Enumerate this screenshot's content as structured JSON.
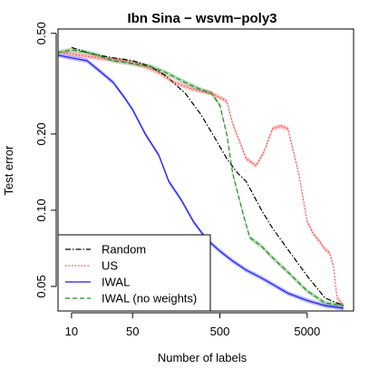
{
  "chart_data": {
    "type": "line",
    "title": "Ibn Sina − wsvm−poly3",
    "xlabel": "Number of labels",
    "ylabel": "Test error",
    "x_scale": "log",
    "y_scale": "log",
    "xlim": [
      7,
      17000
    ],
    "ylim": [
      0.04,
      0.52
    ],
    "x_ticks": [
      10,
      50,
      500,
      5000
    ],
    "x_tick_labels": [
      "10",
      "50",
      "500",
      "5000"
    ],
    "y_ticks": [
      0.05,
      0.1,
      0.2,
      0.5
    ],
    "y_tick_labels": [
      "0.05",
      "0.10",
      "0.20",
      "0.50"
    ],
    "legend_position": "bottom-left",
    "series": [
      {
        "name": "Random",
        "color": "#000000",
        "dash": "dotdash",
        "band": false,
        "x": [
          10,
          15,
          20,
          30,
          50,
          80,
          120,
          200,
          300,
          450,
          600,
          800,
          1000,
          1500,
          2000,
          3000,
          5000,
          8000,
          13000
        ],
        "y": [
          0.44,
          0.42,
          0.41,
          0.4,
          0.39,
          0.37,
          0.34,
          0.29,
          0.24,
          0.19,
          0.16,
          0.14,
          0.13,
          0.1,
          0.085,
          0.07,
          0.055,
          0.045,
          0.042
        ]
      },
      {
        "name": "US",
        "color": "#ff4040",
        "dash": "dotted",
        "band": true,
        "x": [
          8,
          12,
          20,
          40,
          70,
          100,
          150,
          250,
          400,
          600,
          700,
          1000,
          1300,
          1600,
          2000,
          2500,
          3000,
          4000,
          5000,
          6000,
          7000,
          8000,
          9000,
          10000,
          11000,
          13000
        ],
        "y": [
          0.42,
          0.41,
          0.4,
          0.39,
          0.37,
          0.35,
          0.32,
          0.3,
          0.29,
          0.27,
          0.22,
          0.16,
          0.15,
          0.17,
          0.21,
          0.215,
          0.21,
          0.14,
          0.09,
          0.08,
          0.075,
          0.07,
          0.068,
          0.06,
          0.045,
          0.042
        ]
      },
      {
        "name": "IWAL",
        "color": "#1a1aff",
        "dash": "solid",
        "band": true,
        "x": [
          7,
          10,
          15,
          20,
          30,
          40,
          50,
          70,
          100,
          130,
          180,
          250,
          350,
          500,
          700,
          1000,
          1500,
          2000,
          3000,
          5000,
          8000,
          13000
        ],
        "y": [
          0.41,
          0.4,
          0.39,
          0.36,
          0.32,
          0.28,
          0.25,
          0.2,
          0.165,
          0.13,
          0.11,
          0.09,
          0.077,
          0.069,
          0.063,
          0.058,
          0.054,
          0.051,
          0.047,
          0.044,
          0.042,
          0.041
        ]
      },
      {
        "name": "IWAL (no weights)",
        "color": "#1e8c1e",
        "dash": "dashed",
        "band": true,
        "x": [
          7,
          10,
          15,
          20,
          30,
          50,
          80,
          120,
          200,
          300,
          400,
          500,
          600,
          700,
          900,
          1100,
          1500,
          2000,
          3000,
          5000,
          8000,
          13000
        ],
        "y": [
          0.42,
          0.43,
          0.42,
          0.41,
          0.39,
          0.38,
          0.37,
          0.35,
          0.32,
          0.3,
          0.29,
          0.26,
          0.2,
          0.14,
          0.1,
          0.078,
          0.072,
          0.065,
          0.057,
          0.048,
          0.043,
          0.042
        ]
      }
    ]
  }
}
